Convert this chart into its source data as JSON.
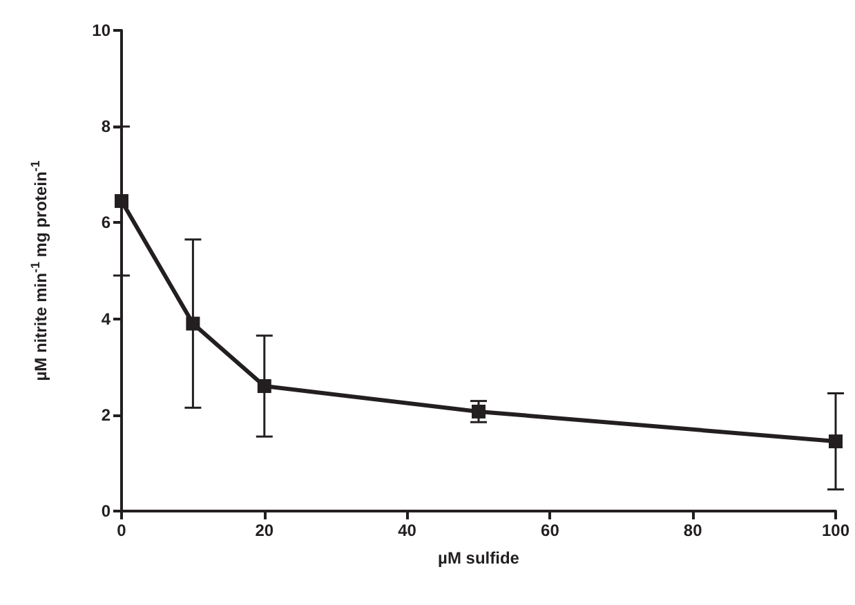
{
  "chart_data": {
    "type": "line",
    "xlabel": "µM sulfide",
    "ylabel": "µM nitrite min$^{-1}$ mg protein$^{-1}$",
    "x": [
      0,
      10,
      20,
      50,
      100
    ],
    "series": [
      {
        "color": "#231f20",
        "values": [
          6.45,
          3.9,
          2.6,
          2.07,
          1.45
        ],
        "errors": [
          1.55,
          1.75,
          1.05,
          0.22,
          1.0
        ]
      }
    ],
    "xlim": [
      0,
      100
    ],
    "xticks": [
      0,
      20,
      40,
      60,
      80,
      100
    ],
    "ylim": [
      0,
      10
    ],
    "yticks": [
      0,
      2,
      4,
      6,
      8,
      10
    ],
    "marker": "square",
    "line_style": "solid"
  }
}
